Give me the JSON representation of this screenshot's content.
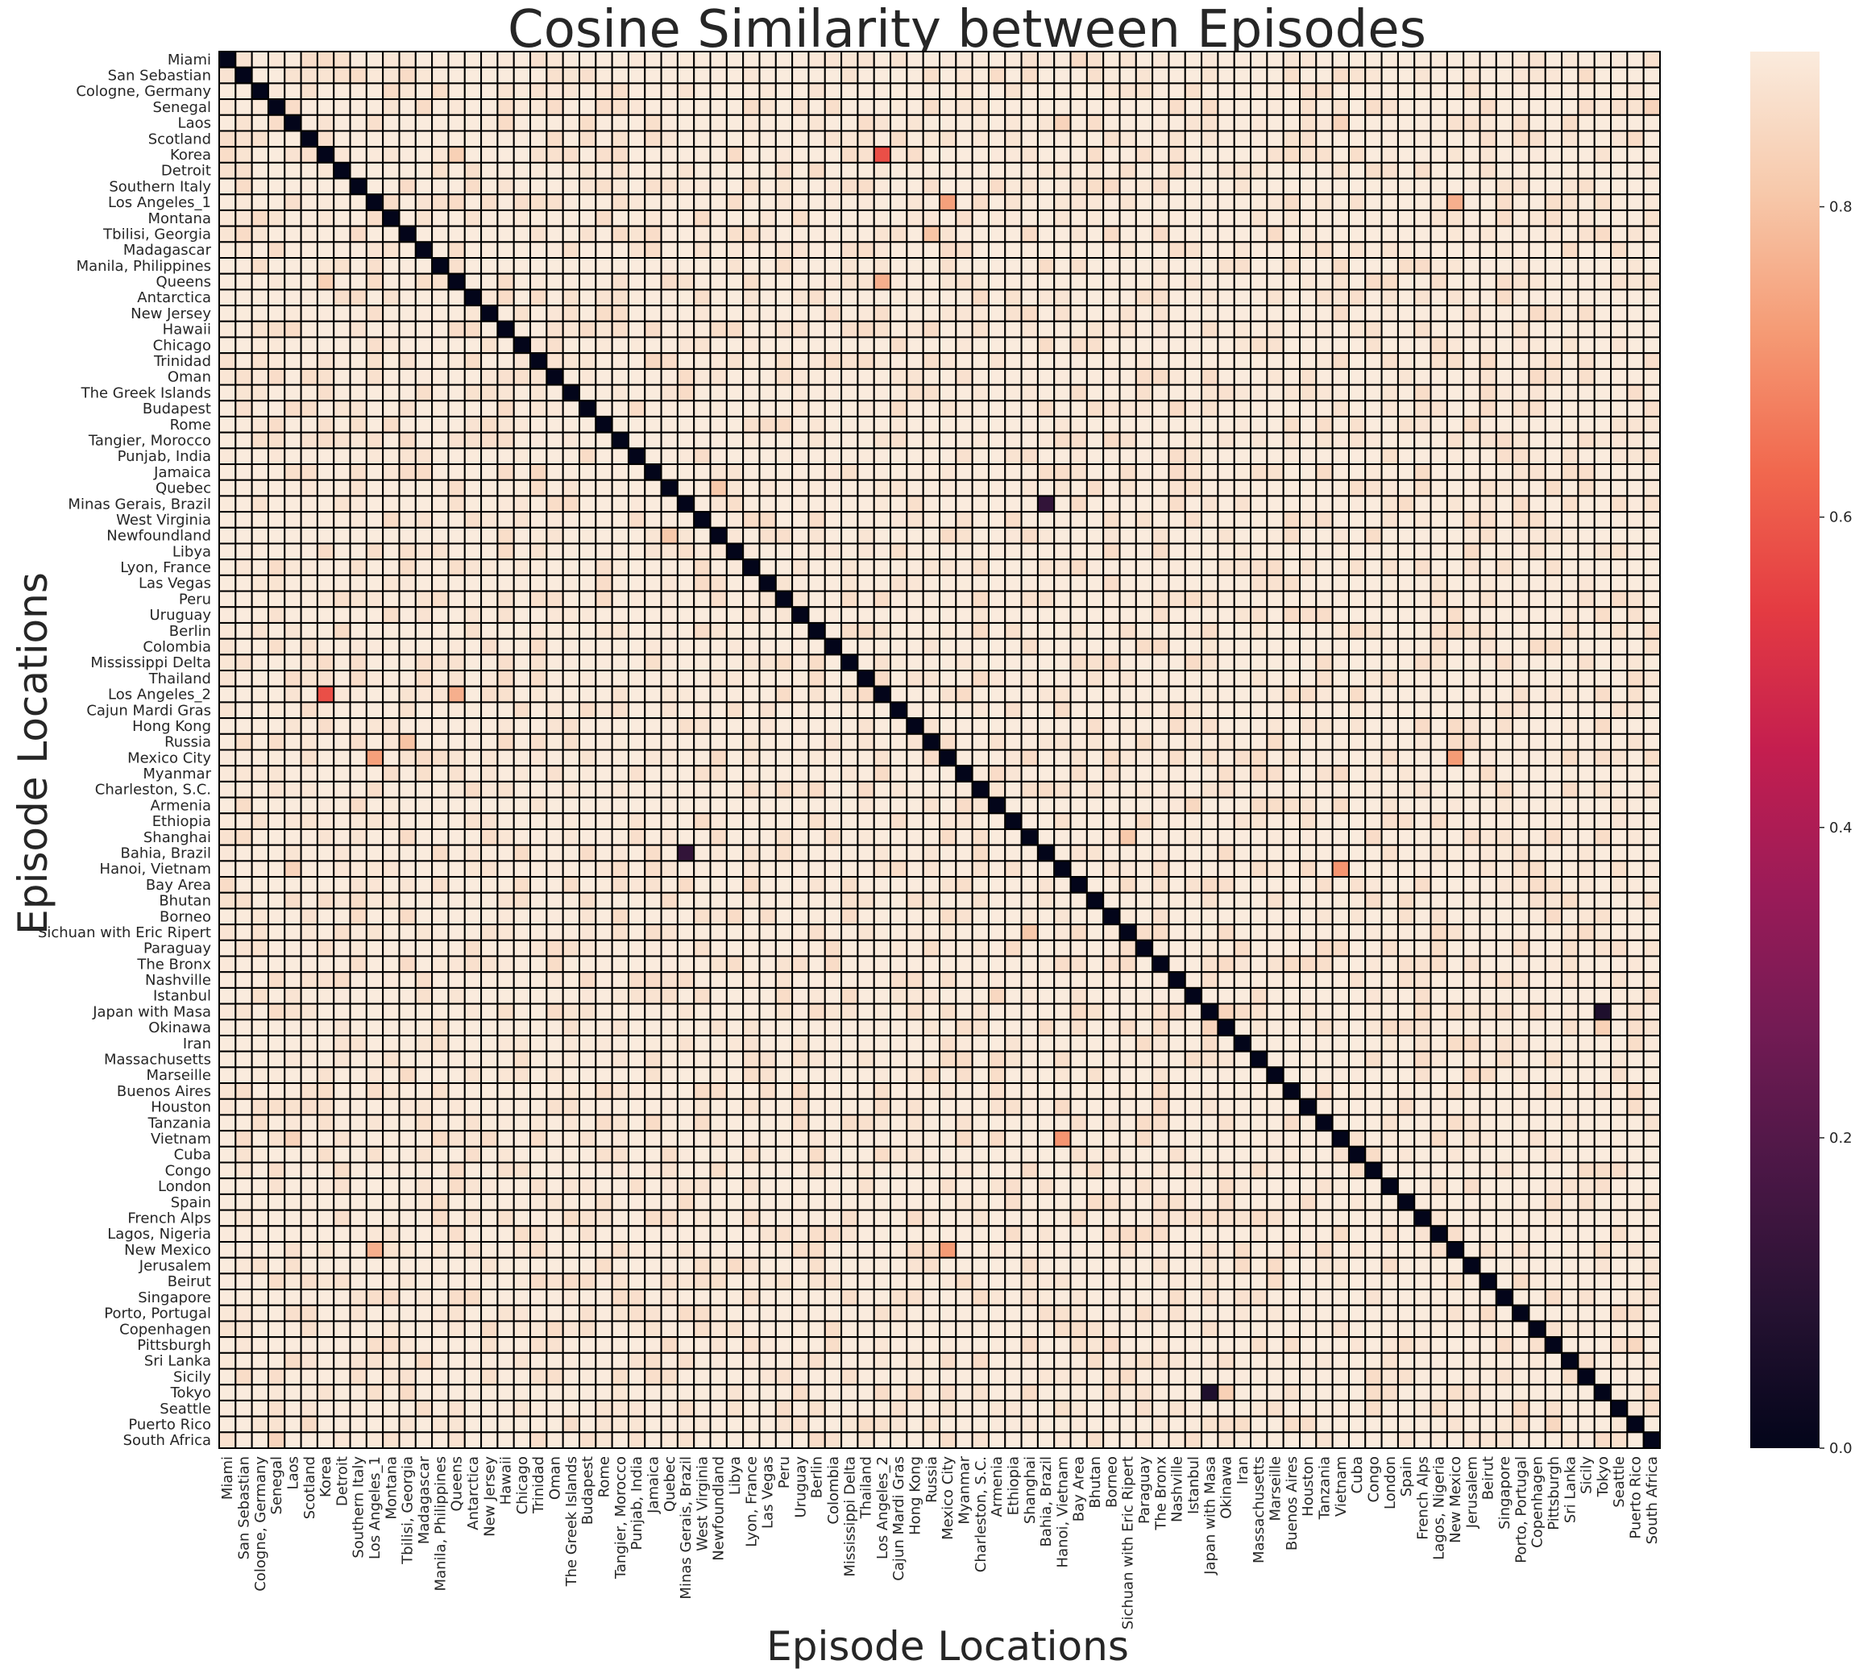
{
  "chart_data": {
    "type": "heatmap",
    "title": "Cosine Similarity between Episodes",
    "xlabel": "Episode Locations",
    "ylabel": "Episode Locations",
    "labels": [
      "Miami",
      "San Sebastian",
      "Cologne, Germany",
      "Senegal",
      "Laos",
      "Scotland",
      "Korea",
      "Detroit",
      "Southern Italy",
      "Los Angeles_1",
      "Montana",
      "Tbilisi, Georgia",
      "Madagascar",
      "Manila, Philippines",
      "Queens",
      "Antarctica",
      "New Jersey",
      "Hawaii",
      "Chicago",
      "Trinidad",
      "Oman",
      "The Greek Islands",
      "Budapest",
      "Rome",
      "Tangier, Morocco",
      "Punjab, India",
      "Jamaica",
      "Quebec",
      "Minas Gerais, Brazil",
      "West Virginia",
      "Newfoundland",
      "Libya",
      "Lyon, France",
      "Las Vegas",
      "Peru",
      "Uruguay",
      "Berlin",
      "Colombia",
      "Mississippi Delta",
      "Thailand",
      "Los Angeles_2",
      "Cajun Mardi Gras",
      "Hong Kong",
      "Russia",
      "Mexico City",
      "Myanmar",
      "Charleston, S.C.",
      "Armenia",
      "Ethiopia",
      "Shanghai",
      "Bahia, Brazil",
      "Hanoi, Vietnam",
      "Bay Area",
      "Bhutan",
      "Borneo",
      "Sichuan with Eric Ripert",
      "Paraguay",
      "The Bronx",
      "Nashville",
      "Istanbul",
      "Japan with Masa",
      "Okinawa",
      "Iran",
      "Massachusetts",
      "Marseille",
      "Buenos Aires",
      "Houston",
      "Tanzania",
      "Vietnam",
      "Cuba",
      "Congo",
      "London",
      "Spain",
      "French Alps",
      "Lagos, Nigeria",
      "New Mexico",
      "Jerusalem",
      "Beirut",
      "Singapore",
      "Porto, Portugal",
      "Copenhagen",
      "Pittsburgh",
      "Sri Lanka",
      "Sicily",
      "Tokyo",
      "Seattle",
      "Puerto Rico",
      "South Africa"
    ],
    "diagonal_value": 0.0,
    "background_range": [
      0.86,
      0.97
    ],
    "notable_values": [
      {
        "a": "Korea",
        "b": "Los Angeles_2",
        "value": 0.58
      },
      {
        "a": "Minas Gerais, Brazil",
        "b": "Bahia, Brazil",
        "value": 0.12
      },
      {
        "a": "Japan with Masa",
        "b": "Tokyo",
        "value": 0.07
      },
      {
        "a": "Los Angeles_1",
        "b": "Mexico City",
        "value": 0.73
      },
      {
        "a": "Los Angeles_1",
        "b": "New Mexico",
        "value": 0.76
      },
      {
        "a": "Mexico City",
        "b": "New Mexico",
        "value": 0.72
      },
      {
        "a": "Hanoi, Vietnam",
        "b": "Vietnam",
        "value": 0.71
      },
      {
        "a": "Queens",
        "b": "Los Angeles_2",
        "value": 0.76
      },
      {
        "a": "Tbilisi, Georgia",
        "b": "Russia",
        "value": 0.8
      },
      {
        "a": "Quebec",
        "b": "Newfoundland",
        "value": 0.81
      },
      {
        "a": "Shanghai",
        "b": "Sichuan with Eric Ripert",
        "value": 0.81
      },
      {
        "a": "Queens",
        "b": "Korea",
        "value": 0.83
      },
      {
        "a": "Laos",
        "b": "Vietnam",
        "value": 0.84
      },
      {
        "a": "Laos",
        "b": "Hanoi, Vietnam",
        "value": 0.84
      },
      {
        "a": "Senegal",
        "b": "South Africa",
        "value": 0.84
      },
      {
        "a": "Japan with Masa",
        "b": "Okinawa",
        "value": 0.84
      },
      {
        "a": "Okinawa",
        "b": "Tokyo",
        "value": 0.83
      },
      {
        "a": "Trinidad",
        "b": "Jamaica",
        "value": 0.85
      },
      {
        "a": "Trinidad",
        "b": "Beirut",
        "value": 0.86
      },
      {
        "a": "Istanbul",
        "b": "Armenia",
        "value": 0.85
      },
      {
        "a": "Pittsburgh",
        "b": "Puerto Rico",
        "value": 0.85
      },
      {
        "a": "Hanoi, Vietnam",
        "b": "Houston",
        "value": 0.86
      },
      {
        "a": "Los Angeles_1",
        "b": "Queens",
        "value": 0.86
      },
      {
        "a": "Southern Italy",
        "b": "Rome",
        "value": 0.87
      },
      {
        "a": "Southern Italy",
        "b": "Sicily",
        "value": 0.87
      },
      {
        "a": "Lagos, Nigeria",
        "b": "Sichuan with Eric Ripert",
        "value": 0.86
      },
      {
        "a": "Uruguay",
        "b": "Buenos Aires",
        "value": 0.86
      },
      {
        "a": "Cologne, Germany",
        "b": "Istanbul",
        "value": 0.87
      },
      {
        "a": "Cologne, Germany",
        "b": "Berlin",
        "value": 0.88
      }
    ],
    "colorbar": {
      "min": 0.0,
      "max": 0.9,
      "ticks": [
        "0.0",
        "0.2",
        "0.4",
        "0.6",
        "0.8"
      ]
    },
    "colormap": "rocket",
    "grid": true,
    "legend": "colorbar-right"
  }
}
